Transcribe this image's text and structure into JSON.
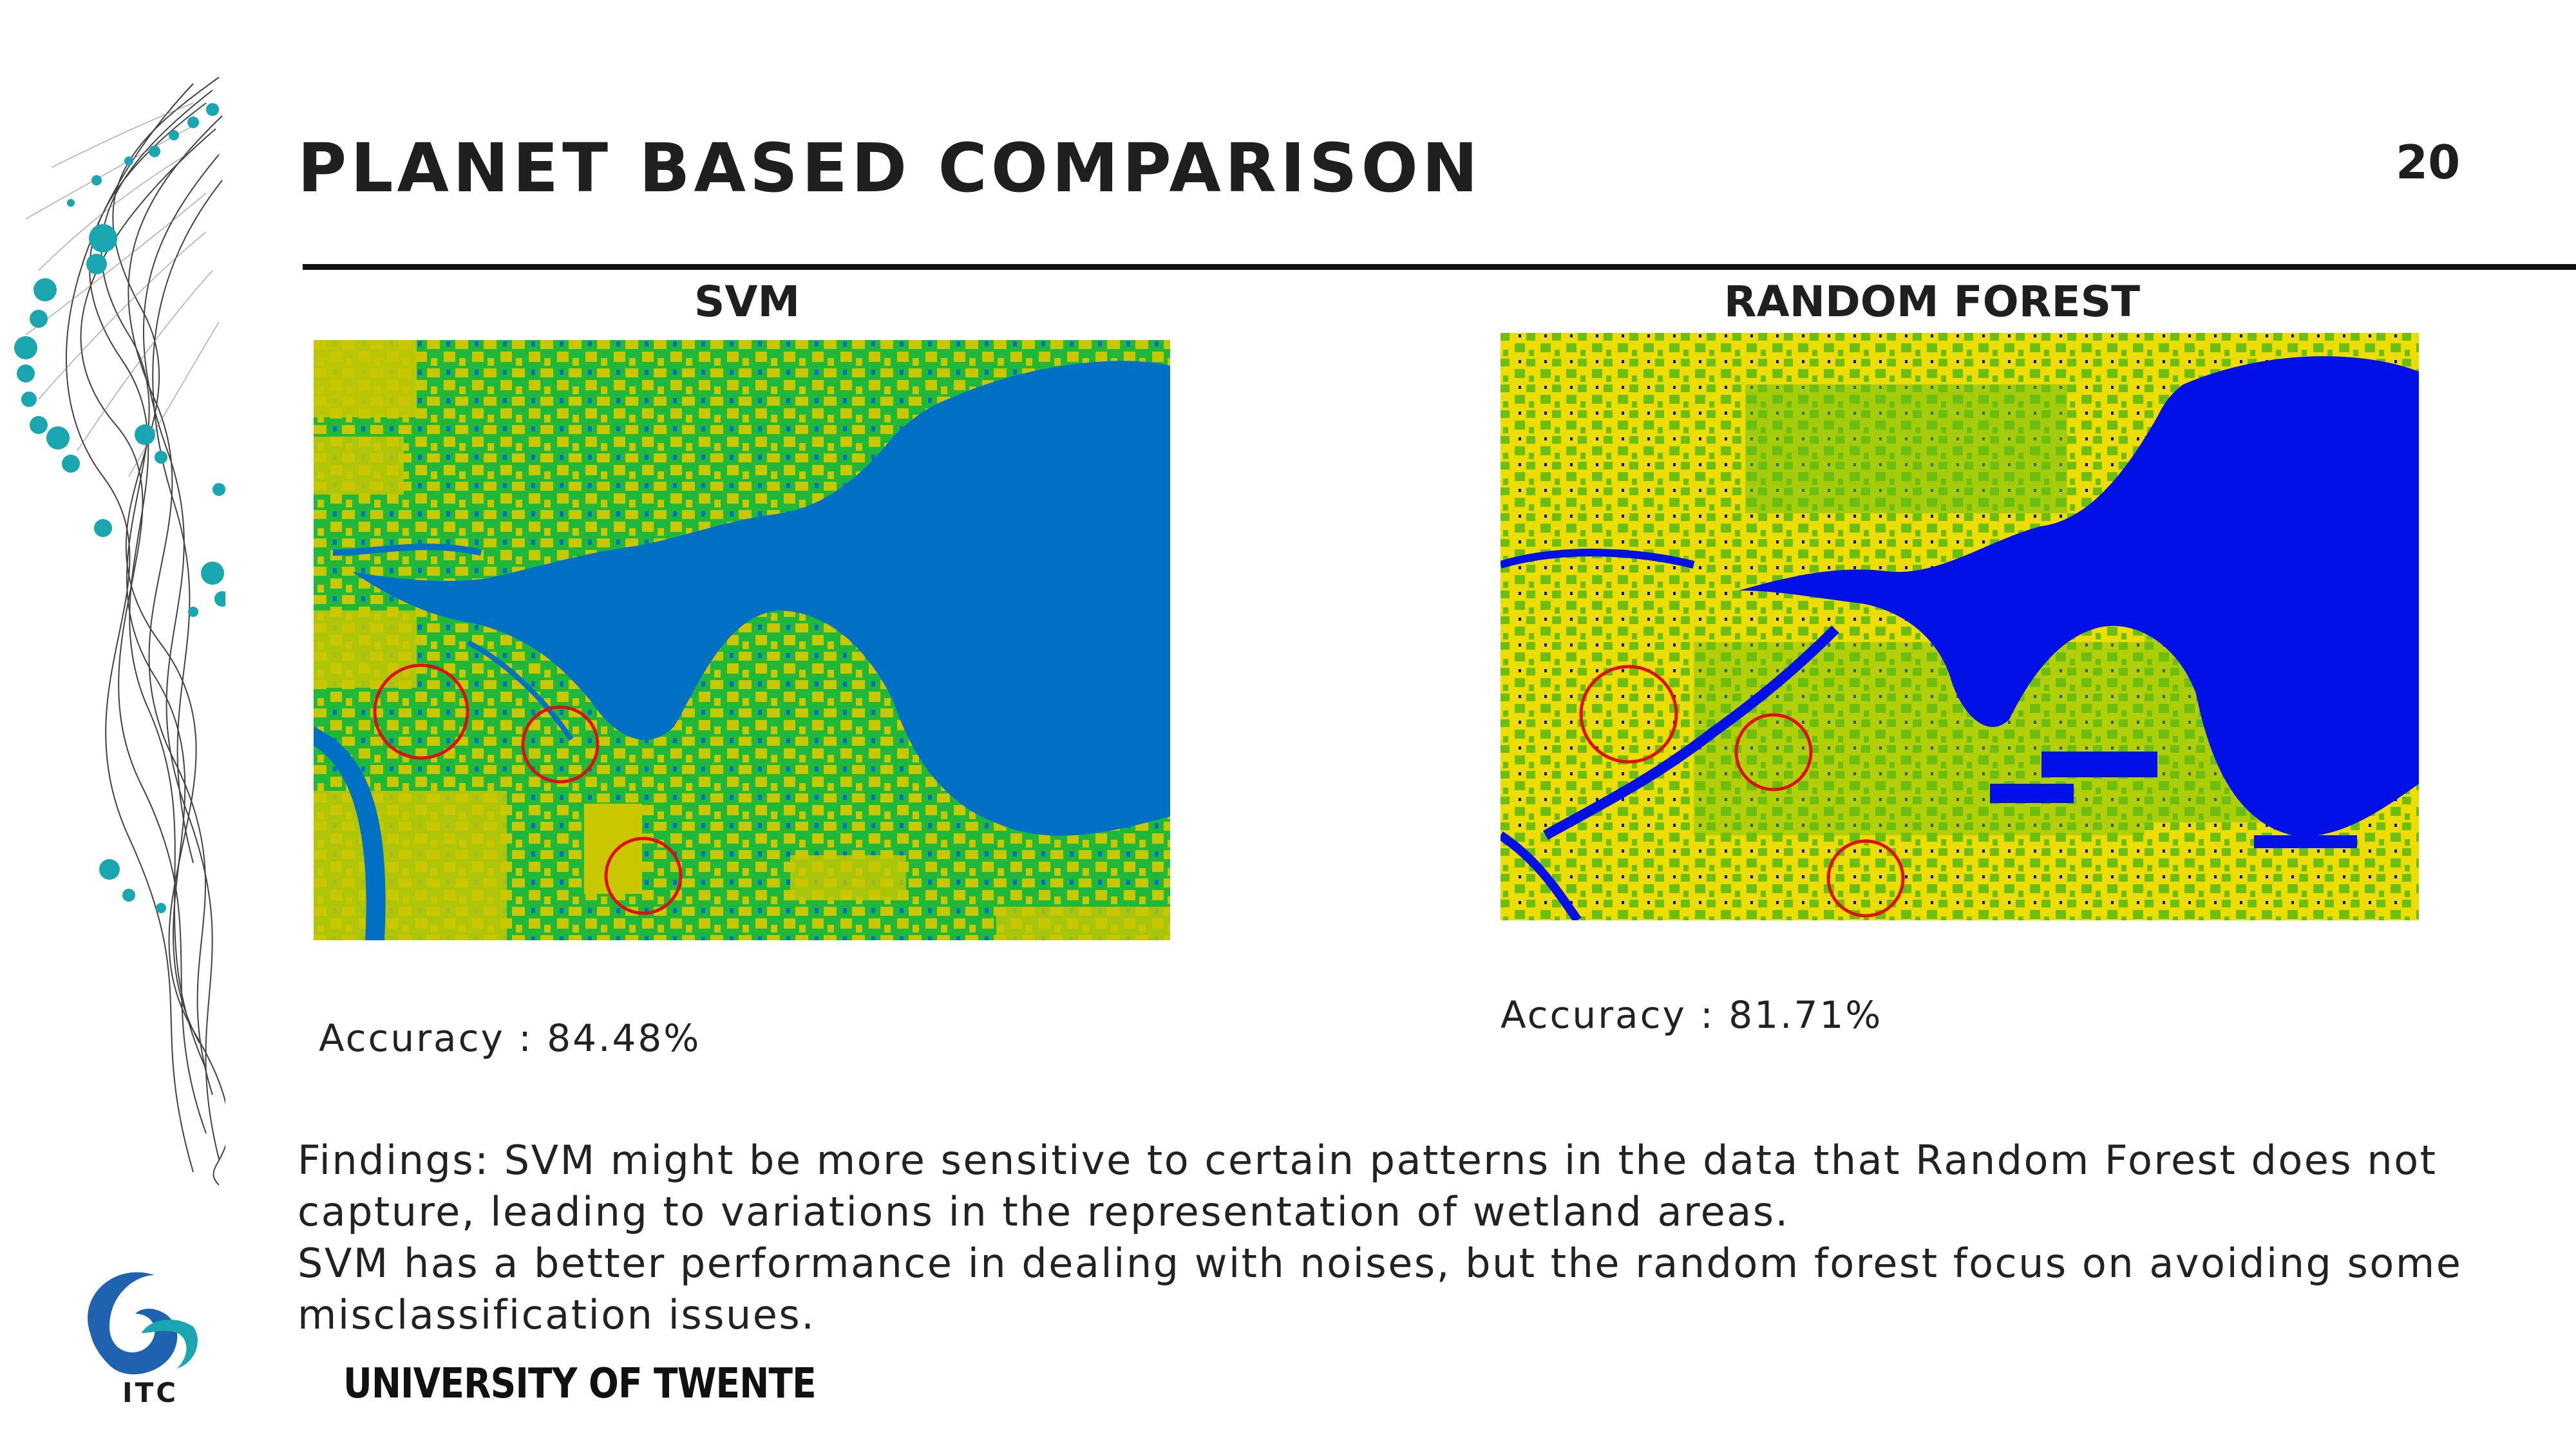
{
  "slide": {
    "title": "PLANET BASED COMPARISON",
    "page_number": "20"
  },
  "svm": {
    "heading": "SVM",
    "accuracy": "Accuracy : 84.48%"
  },
  "random_forest": {
    "heading": "RANDOM FOREST",
    "accuracy": "Accuracy : 81.71%"
  },
  "findings": {
    "line1": "Findings:  SVM might be more sensitive to certain patterns in the data that Random Forest does not capture, leading to variations in the representation of wetland areas.",
    "line2": "SVM has a better performance in dealing with noises, but the random forest focus on avoiding some misclassification issues."
  },
  "logos": {
    "university": "UNIVERSITY OF TWENTE",
    "itc": "ITC"
  },
  "colors": {
    "svm_water": "#0070c4",
    "svm_veg": "#1fb83a",
    "svm_crop": "#c9c800",
    "rf_water": "#0010e6",
    "rf_veg": "#6cbf12",
    "rf_crop": "#ecdc00",
    "circle": "#e01010",
    "deco_teal": "#1aa6b0",
    "logo_blue": "#1e62b0"
  },
  "icons": {
    "decoration": "teal-node-network-decoration",
    "itc_logo": "itc-swirl-logo-icon"
  }
}
